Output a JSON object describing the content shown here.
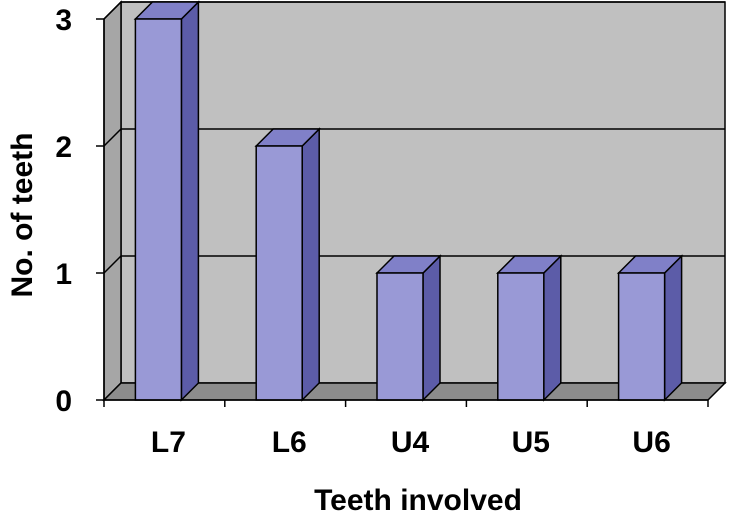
{
  "chart_data": {
    "type": "bar",
    "title": "",
    "xlabel": "Teeth involved",
    "ylabel": "No. of teeth",
    "categories": [
      "L7",
      "L6",
      "U4",
      "U5",
      "U6"
    ],
    "values": [
      3,
      2,
      1,
      1,
      1
    ],
    "ylim": [
      0,
      3
    ],
    "yticks": [
      0,
      1,
      2,
      3
    ],
    "grid": true,
    "legend": "none",
    "style": "3d-column"
  },
  "colors": {
    "bar_front": "#9999d6",
    "bar_side": "#5c5ca8",
    "bar_top": "#8080c8",
    "plot_back": "#c0c0c0",
    "plot_side": "#a6a6a6",
    "plot_floor": "#8c8c8c",
    "gridline": "#000000"
  }
}
